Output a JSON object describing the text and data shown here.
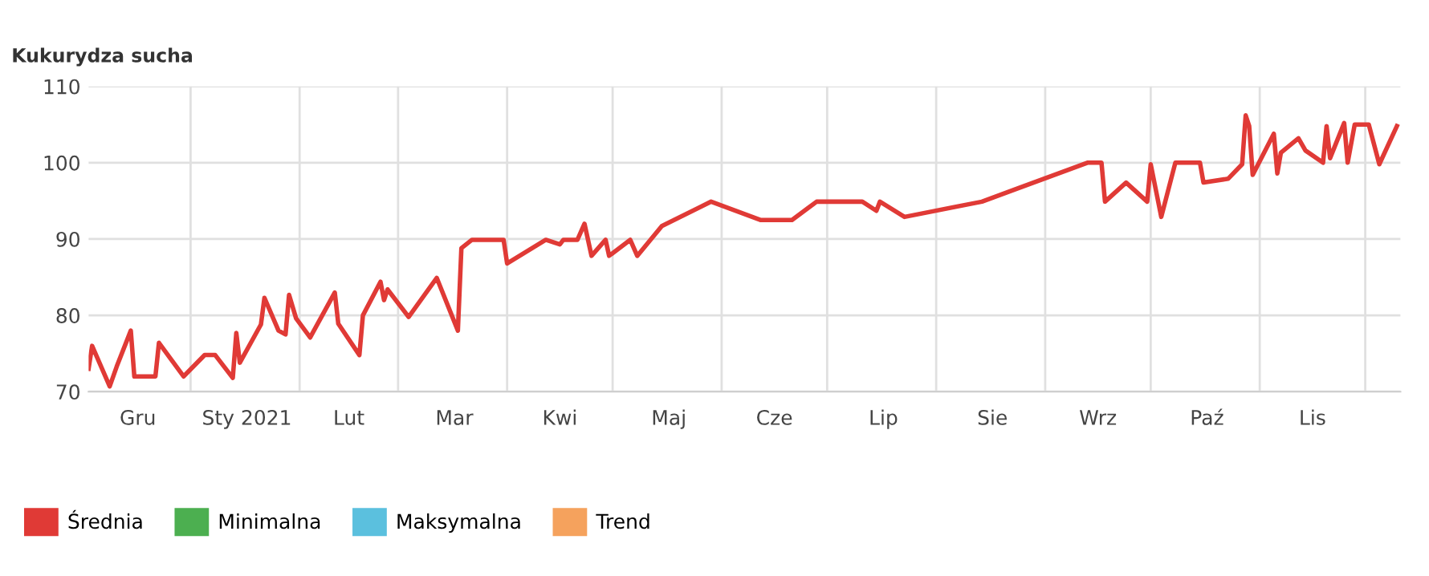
{
  "chart_data": {
    "type": "line",
    "title": "Kukurydza sucha",
    "x": [
      "2020-12-03",
      "2020-12-04",
      "2020-12-09",
      "2020-12-11",
      "2020-12-15",
      "2020-12-16",
      "2020-12-22",
      "2020-12-23",
      "2020-12-30",
      "2021-01-05",
      "2021-01-08",
      "2021-01-13",
      "2021-01-14",
      "2021-01-15",
      "2021-01-21",
      "2021-01-22",
      "2021-01-26",
      "2021-01-28",
      "2021-01-29",
      "2021-01-31",
      "2021-02-04",
      "2021-02-11",
      "2021-02-12",
      "2021-02-18",
      "2021-02-19",
      "2021-02-24",
      "2021-02-25",
      "2021-02-26",
      "2021-03-04",
      "2021-03-12",
      "2021-03-18",
      "2021-03-19",
      "2021-03-22",
      "2021-03-31",
      "2021-04-01",
      "2021-04-12",
      "2021-04-16",
      "2021-04-17",
      "2021-04-21",
      "2021-04-23",
      "2021-04-25",
      "2021-04-29",
      "2021-04-30",
      "2021-05-06",
      "2021-05-08",
      "2021-05-15",
      "2021-05-29",
      "2021-06-12",
      "2021-06-21",
      "2021-06-28",
      "2021-07-11",
      "2021-07-15",
      "2021-07-16",
      "2021-07-23",
      "2021-08-14",
      "2021-09-13",
      "2021-09-17",
      "2021-09-18",
      "2021-09-24",
      "2021-09-30",
      "2021-10-01",
      "2021-10-04",
      "2021-10-08",
      "2021-10-15",
      "2021-10-16",
      "2021-10-23",
      "2021-10-27",
      "2021-10-28",
      "2021-10-29",
      "2021-10-30",
      "2021-11-05",
      "2021-11-06",
      "2021-11-07",
      "2021-11-12",
      "2021-11-14",
      "2021-11-19",
      "2021-11-20",
      "2021-11-21",
      "2021-11-25",
      "2021-11-26",
      "2021-11-28",
      "2021-12-02",
      "2021-12-05",
      "2021-12-10"
    ],
    "series": [
      {
        "name": "Średnia",
        "color": "#e03a36",
        "values": [
          73,
          76,
          70.7,
          73.3,
          78,
          72,
          72,
          76.4,
          72,
          74.8,
          74.8,
          71.8,
          77.7,
          73.8,
          78.8,
          82.3,
          78,
          77.5,
          82.7,
          79.6,
          77.1,
          83,
          78.9,
          74.8,
          80,
          84.4,
          82,
          83.4,
          79.8,
          84.9,
          78,
          88.8,
          89.9,
          89.9,
          86.8,
          89.9,
          89.3,
          89.9,
          89.9,
          92,
          87.8,
          89.9,
          87.8,
          89.9,
          87.8,
          91.7,
          94.9,
          92.5,
          92.5,
          94.9,
          94.9,
          93.7,
          94.9,
          92.9,
          94.9,
          100,
          100,
          94.9,
          97.4,
          94.9,
          99.8,
          92.9,
          100,
          100,
          97.4,
          97.9,
          99.8,
          106.2,
          104.8,
          98.4,
          103.8,
          98.6,
          101.3,
          103.2,
          101.6,
          100,
          104.8,
          100.6,
          105.2,
          100,
          105,
          105,
          99.8,
          104.8
        ]
      },
      {
        "name": "Minimalna",
        "color": "#4caf50",
        "values": [
          null,
          null,
          null,
          null,
          null,
          null,
          null,
          null,
          null,
          null,
          null,
          null,
          null,
          null,
          null,
          null,
          null,
          null,
          null,
          null,
          null,
          null,
          null,
          null,
          null,
          null,
          null,
          null,
          null,
          null,
          null,
          null,
          null,
          null,
          null,
          null,
          null,
          null,
          null,
          null,
          null,
          null,
          null,
          null,
          null,
          null,
          null,
          null,
          null,
          null,
          null,
          null,
          null,
          null,
          null,
          null,
          null,
          null,
          null,
          null,
          null,
          null,
          null,
          null,
          null,
          null,
          null,
          null,
          null,
          null,
          null,
          null,
          null,
          null,
          null,
          null,
          null,
          null,
          null,
          null,
          null,
          null,
          null,
          null
        ]
      },
      {
        "name": "Maksymalna",
        "color": "#5bc0de",
        "values": [
          null,
          null,
          null,
          null,
          null,
          null,
          null,
          null,
          null,
          null,
          null,
          null,
          null,
          null,
          null,
          null,
          null,
          null,
          null,
          null,
          null,
          null,
          null,
          null,
          null,
          null,
          null,
          null,
          null,
          null,
          null,
          null,
          null,
          null,
          null,
          null,
          null,
          null,
          null,
          null,
          null,
          null,
          null,
          null,
          null,
          null,
          null,
          null,
          null,
          null,
          null,
          null,
          null,
          null,
          null,
          null,
          null,
          null,
          null,
          null,
          null,
          null,
          null,
          null,
          null,
          null,
          null,
          null,
          null,
          null,
          null,
          null,
          null,
          null,
          null,
          null,
          null,
          null,
          null,
          null,
          null,
          null,
          null,
          null
        ]
      },
      {
        "name": "Trend",
        "color": "#f5a25d",
        "values": [
          null,
          null,
          null,
          null,
          null,
          null,
          null,
          null,
          null,
          null,
          null,
          null,
          null,
          null,
          null,
          null,
          null,
          null,
          null,
          null,
          null,
          null,
          null,
          null,
          null,
          null,
          null,
          null,
          null,
          null,
          null,
          null,
          null,
          null,
          null,
          null,
          null,
          null,
          null,
          null,
          null,
          null,
          null,
          null,
          null,
          null,
          null,
          null,
          null,
          null,
          null,
          null,
          null,
          null,
          null,
          null,
          null,
          null,
          null,
          null,
          null,
          null,
          null,
          null,
          null,
          null,
          null,
          null,
          null,
          null,
          null,
          null,
          null,
          null,
          null,
          null,
          null,
          null,
          null,
          null,
          null,
          null,
          null,
          null
        ]
      }
    ],
    "xlim": [
      "2020-12-03",
      "2021-12-11"
    ],
    "xticks": [
      {
        "value": "2021-01-01",
        "label": null
      },
      {
        "value": "2021-02-01",
        "label": null
      },
      {
        "value": "2021-03-01",
        "label": null
      },
      {
        "value": "2021-04-01",
        "label": null
      },
      {
        "value": "2021-05-01",
        "label": null
      },
      {
        "value": "2021-06-01",
        "label": null
      },
      {
        "value": "2021-07-01",
        "label": null
      },
      {
        "value": "2021-08-01",
        "label": null
      },
      {
        "value": "2021-09-01",
        "label": null
      },
      {
        "value": "2021-10-01",
        "label": null
      },
      {
        "value": "2021-11-01",
        "label": null
      },
      {
        "value": "2021-12-01",
        "label": null
      },
      {
        "value": "2020-12-17",
        "label": "Gru"
      },
      {
        "value": "2021-01-17",
        "label": "Sty 2021"
      },
      {
        "value": "2021-02-15",
        "label": "Lut"
      },
      {
        "value": "2021-03-17",
        "label": "Mar"
      },
      {
        "value": "2021-04-16",
        "label": "Kwi"
      },
      {
        "value": "2021-05-17",
        "label": "Maj"
      },
      {
        "value": "2021-06-16",
        "label": "Cze"
      },
      {
        "value": "2021-07-17",
        "label": "Lip"
      },
      {
        "value": "2021-08-17",
        "label": "Sie"
      },
      {
        "value": "2021-09-16",
        "label": "Wrz"
      },
      {
        "value": "2021-10-17",
        "label": "Paź"
      },
      {
        "value": "2021-11-16",
        "label": "Lis"
      }
    ],
    "ylim": [
      70,
      110
    ],
    "yticks": [
      70,
      80,
      90,
      100,
      110
    ],
    "grid": true,
    "legend": "bottom left",
    "marker": "none",
    "line_style": "solid"
  }
}
